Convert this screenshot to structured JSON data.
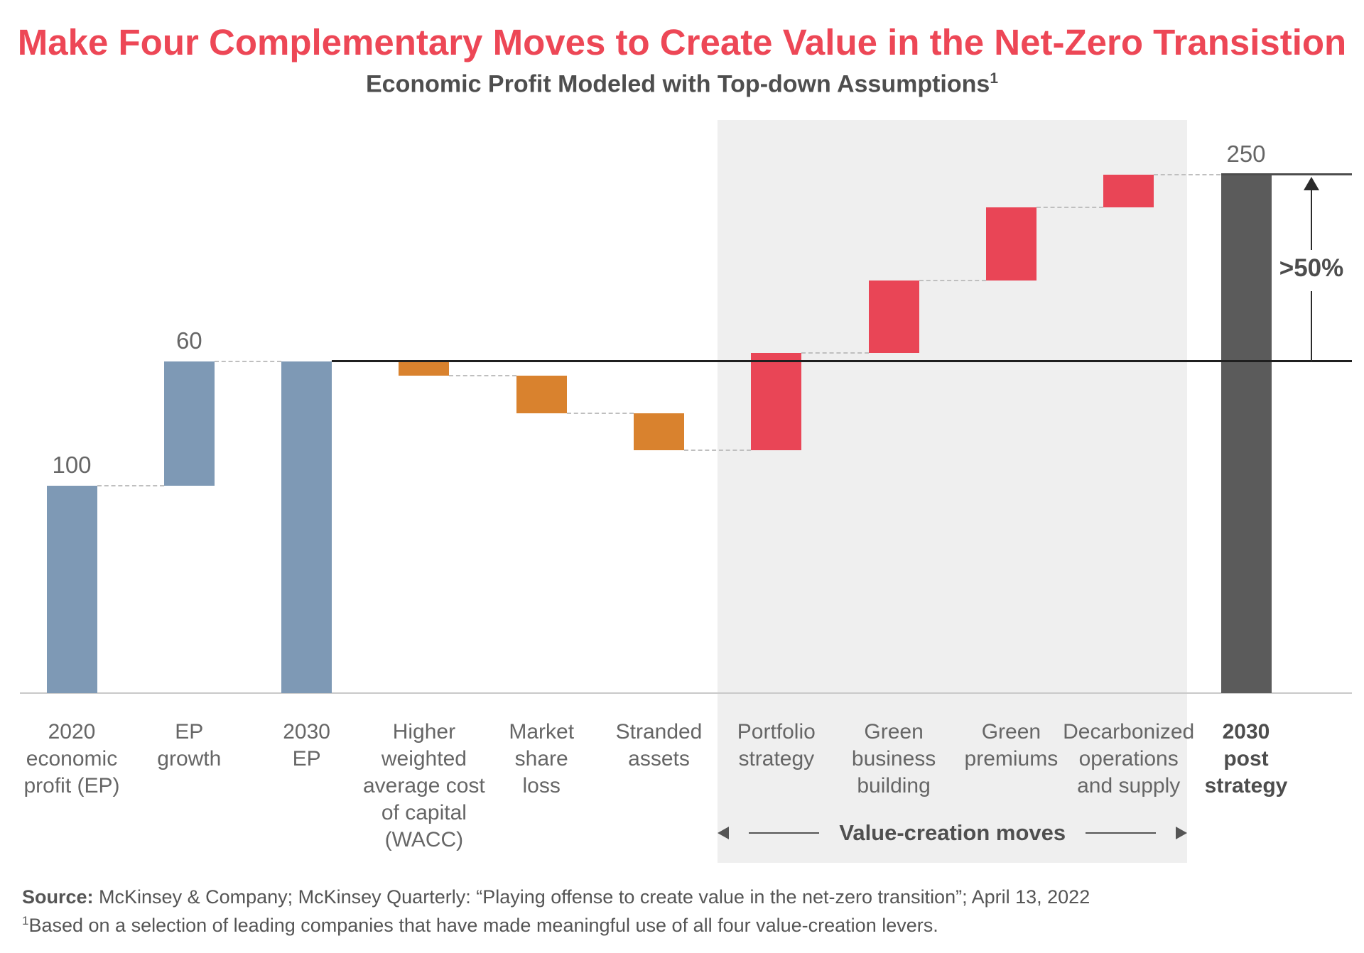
{
  "title": "Make Four Complementary Moves to Create Value in the Net-Zero Transistion",
  "subtitle": {
    "text": "Economic Profit Modeled with Top-down Assumptions",
    "superscript": "1"
  },
  "footer": {
    "source_label": "Source:",
    "source_text": "  McKinsey & Company; McKinsey Quarterly: “Playing offense to create value in the net-zero transition”; April 13, 2022",
    "footnote_sup": "1",
    "footnote_text": "Based on a selection of leading companies that have made meaningful use of all four value-creation levers."
  },
  "colors": {
    "title_red": "#ED4756",
    "bar_blue": "#7E99B5",
    "bar_orange": "#D9822E",
    "bar_red": "#E94556",
    "bar_dark": "#5B5B5B",
    "highlight_bg": "#EFEFEF",
    "connector": "#BFBFBF",
    "line_160": "#1F1F1F",
    "line_250": "#4D4D4D"
  },
  "chart_data": {
    "type": "bar",
    "subtype": "waterfall",
    "title": "Economic Profit Modeled with Top-down Assumptions",
    "ylim": [
      0,
      250
    ],
    "grid": false,
    "legend": false,
    "categories": [
      "2020 economic profit (EP)",
      "EP growth",
      "2030 EP",
      "Higher weighted average cost of capital (WACC)",
      "Market share loss",
      "Stranded assets",
      "Portfolio strategy",
      "Green business building",
      "Green premiums",
      "Decarbonized operations and supply",
      "2030 post strategy"
    ],
    "steps": [
      {
        "label": "2020 economic profit (EP)",
        "label_lines": [
          "2020",
          "economic",
          "profit (EP)"
        ],
        "kind": "absolute",
        "value": 100,
        "shown_value": "100",
        "color_key": "bar_blue"
      },
      {
        "label": "EP growth",
        "label_lines": [
          "EP",
          "growth"
        ],
        "kind": "delta",
        "value": 60,
        "shown_value": "60",
        "color_key": "bar_blue"
      },
      {
        "label": "2030 EP",
        "label_lines": [
          "2030",
          "EP"
        ],
        "kind": "absolute",
        "value": 160,
        "color_key": "bar_blue"
      },
      {
        "label": "Higher weighted average cost of capital (WACC)",
        "label_lines": [
          "Higher",
          "weighted",
          "average cost",
          "of capital",
          "(WACC)"
        ],
        "kind": "delta",
        "value": -7,
        "color_key": "bar_orange"
      },
      {
        "label": "Market share loss",
        "label_lines": [
          "Market",
          "share",
          "loss"
        ],
        "kind": "delta",
        "value": -18,
        "color_key": "bar_orange"
      },
      {
        "label": "Stranded assets",
        "label_lines": [
          "Stranded",
          "assets"
        ],
        "kind": "delta",
        "value": -18,
        "color_key": "bar_orange"
      },
      {
        "label": "Portfolio strategy",
        "label_lines": [
          "Portfolio",
          "strategy"
        ],
        "kind": "delta",
        "value": 47,
        "color_key": "bar_red"
      },
      {
        "label": "Green business building",
        "label_lines": [
          "Green",
          "business",
          "building"
        ],
        "kind": "delta",
        "value": 35,
        "color_key": "bar_red"
      },
      {
        "label": "Green premiums",
        "label_lines": [
          "Green",
          "premiums"
        ],
        "kind": "delta",
        "value": 35,
        "color_key": "bar_red"
      },
      {
        "label": "Decarbonized operations and supply",
        "label_lines": [
          "Decarbonized",
          "operations",
          "and supply"
        ],
        "kind": "delta",
        "value": 16,
        "color_key": "bar_red"
      },
      {
        "label": "2030 post strategy",
        "label_lines": [
          "2030",
          "post",
          "strategy"
        ],
        "kind": "absolute",
        "value": 250,
        "shown_value": "250",
        "color_key": "bar_dark",
        "bold_label": true
      }
    ],
    "level_lines": [
      {
        "value": 160,
        "start_step": 2,
        "edge": "right",
        "color_key": "line_160"
      },
      {
        "value": 250,
        "start_step": 10,
        "edge": "left",
        "color_key": "line_250"
      }
    ],
    "highlight_region": {
      "from_step": 6,
      "to_step": 9,
      "label": "Value-creation moves"
    },
    "right_annotation": {
      "text": ">50%",
      "from_value": 160,
      "to_value": 250
    }
  }
}
